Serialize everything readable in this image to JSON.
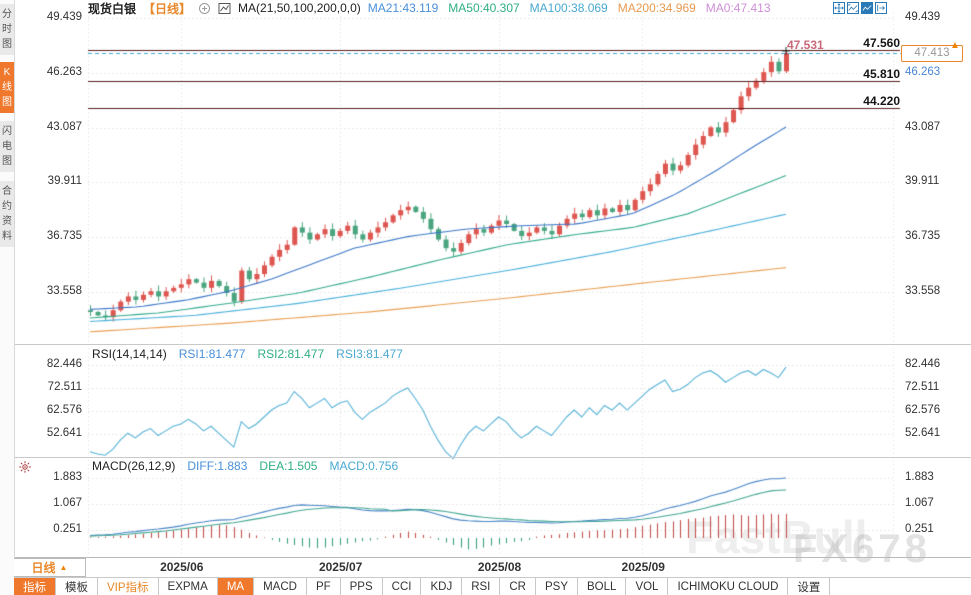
{
  "header": {
    "symbol": "现货白银",
    "period_tag": "【日线】",
    "ma_title": "MA(21,50,100,200,0,0)",
    "ma_values": [
      {
        "text": "MA21:43.119",
        "color": "#4a90d9"
      },
      {
        "text": "MA50:40.307",
        "color": "#2fae84"
      },
      {
        "text": "MA100:38.069",
        "color": "#4aa9d0"
      },
      {
        "text": "MA200:34.969",
        "color": "#e79a52"
      },
      {
        "text": "MA0:47.413",
        "color": "#cf8fd6"
      }
    ],
    "accent_orange": "#f0782d"
  },
  "sidebar": {
    "items": [
      {
        "label": "分时图",
        "active": false
      },
      {
        "label": "K线图",
        "active": true
      },
      {
        "label": "闪电图",
        "active": false
      },
      {
        "label": "合约资料",
        "active": false
      }
    ]
  },
  "rsi": {
    "title": "RSI(14,14,14)",
    "values": [
      {
        "text": "RSI1:81.477",
        "color": "#4a90d9"
      },
      {
        "text": "RSI2:81.477",
        "color": "#2fae84"
      },
      {
        "text": "RSI3:81.477",
        "color": "#4aa9d0"
      }
    ]
  },
  "macd_hdr": {
    "title": "MACD(26,12,9)",
    "values": [
      {
        "text": "DIFF:1.883",
        "color": "#4a90d9"
      },
      {
        "text": "DEA:1.505",
        "color": "#2fae84"
      },
      {
        "text": "MACD:0.756",
        "color": "#4aa9d0"
      }
    ]
  },
  "xaxis": {
    "period_box": "日线"
  },
  "markers": {
    "up_arrow": "▲"
  },
  "toolbar": {
    "tabs": [
      {
        "label": "指标",
        "active": true
      },
      {
        "label": "模板"
      },
      {
        "label": "VIP指标",
        "vip": true
      },
      {
        "label": "EXPMA"
      },
      {
        "label": "MA",
        "active": true
      },
      {
        "label": "MACD"
      },
      {
        "label": "PF"
      },
      {
        "label": "PPS"
      },
      {
        "label": "CCI"
      },
      {
        "label": "KDJ"
      },
      {
        "label": "RSI"
      },
      {
        "label": "CR"
      },
      {
        "label": "PSY"
      },
      {
        "label": "BOLL"
      },
      {
        "label": "VOL"
      },
      {
        "label": "ICHIMOKU CLOUD"
      },
      {
        "label": "设置"
      }
    ]
  },
  "watermarks": {
    "fastbull": "FastBull",
    "fx678": "FX678"
  },
  "chart_data": {
    "type": "candlestick",
    "title": "现货白银 日线",
    "price_ticks": [
      49.439,
      46.263,
      43.087,
      39.911,
      36.735,
      33.558
    ],
    "levels": [
      47.56,
      45.81,
      44.22
    ],
    "current": 47.413,
    "last_high": 47.531,
    "first_open": 32.5,
    "x_month_ticks": [
      {
        "label": "2025/06",
        "i": 12
      },
      {
        "label": "2025/07",
        "i": 33
      },
      {
        "label": "2025/08",
        "i": 54
      },
      {
        "label": "2025/09",
        "i": 73
      }
    ],
    "closes": [
      32.4,
      32.2,
      32.1,
      32.5,
      33.0,
      33.3,
      33.1,
      33.4,
      33.6,
      33.3,
      33.6,
      33.8,
      34.0,
      34.3,
      34.1,
      33.8,
      34.2,
      33.9,
      33.5,
      33.0,
      34.8,
      34.3,
      34.6,
      35.1,
      35.6,
      36.0,
      36.3,
      37.3,
      37.0,
      36.6,
      36.9,
      37.2,
      36.8,
      37.1,
      37.4,
      36.9,
      36.6,
      37.0,
      37.3,
      37.6,
      38.0,
      38.3,
      38.5,
      38.2,
      37.8,
      37.2,
      36.6,
      36.1,
      35.9,
      36.4,
      36.9,
      37.2,
      37.0,
      37.4,
      37.7,
      37.5,
      37.1,
      36.8,
      37.0,
      37.3,
      37.1,
      36.9,
      37.4,
      37.8,
      38.1,
      37.9,
      38.3,
      38.0,
      38.4,
      38.2,
      38.6,
      38.3,
      38.9,
      39.4,
      39.8,
      40.4,
      41.0,
      40.6,
      40.9,
      41.5,
      42.1,
      42.6,
      43.1,
      42.8,
      43.4,
      44.1,
      44.9,
      45.4,
      45.8,
      46.3,
      46.9,
      46.35,
      47.413
    ],
    "up_color": "#de5650",
    "down_color": "#4aa57f",
    "ma_curves": [
      {
        "name": "MA21",
        "color": "#3d78c9",
        "points": [
          [
            0,
            32.55
          ],
          [
            0.07,
            32.7
          ],
          [
            0.14,
            33.1
          ],
          [
            0.2,
            33.6
          ],
          [
            0.26,
            34.3
          ],
          [
            0.32,
            35.2
          ],
          [
            0.38,
            36.1
          ],
          [
            0.46,
            36.8
          ],
          [
            0.54,
            37.2
          ],
          [
            0.62,
            37.4
          ],
          [
            0.7,
            37.5
          ],
          [
            0.78,
            38.1
          ],
          [
            0.84,
            39.2
          ],
          [
            0.9,
            40.6
          ],
          [
            0.95,
            41.9
          ],
          [
            1,
            43.119
          ]
        ]
      },
      {
        "name": "MA50",
        "color": "#36ab8e",
        "points": [
          [
            0,
            32.05
          ],
          [
            0.1,
            32.35
          ],
          [
            0.2,
            32.9
          ],
          [
            0.3,
            33.5
          ],
          [
            0.4,
            34.4
          ],
          [
            0.5,
            35.4
          ],
          [
            0.6,
            36.3
          ],
          [
            0.7,
            36.9
          ],
          [
            0.78,
            37.3
          ],
          [
            0.86,
            38.1
          ],
          [
            0.93,
            39.2
          ],
          [
            1,
            40.307
          ]
        ]
      },
      {
        "name": "MA100",
        "color": "#4bb0dc",
        "points": [
          [
            0,
            31.85
          ],
          [
            0.15,
            32.2
          ],
          [
            0.3,
            32.9
          ],
          [
            0.45,
            33.8
          ],
          [
            0.6,
            34.8
          ],
          [
            0.75,
            35.9
          ],
          [
            0.88,
            37.0
          ],
          [
            1,
            38.069
          ]
        ]
      },
      {
        "name": "MA200",
        "color": "#e9a055",
        "points": [
          [
            0,
            31.25
          ],
          [
            0.2,
            31.75
          ],
          [
            0.4,
            32.4
          ],
          [
            0.6,
            33.2
          ],
          [
            0.8,
            34.1
          ],
          [
            1,
            34.969
          ]
        ]
      }
    ],
    "rsi_panel": {
      "ticks": [
        82.446,
        72.511,
        62.576,
        52.641
      ],
      "line_color": "#57b2d6",
      "values": [
        45,
        44,
        43.5,
        46,
        50,
        53,
        51,
        53.5,
        55,
        52,
        54,
        56,
        57,
        59,
        57,
        54,
        56,
        53,
        50,
        47,
        58,
        55,
        57,
        60,
        63,
        65,
        66,
        71,
        68,
        64,
        66,
        68,
        64,
        66,
        67,
        62,
        59,
        62,
        64,
        66,
        69,
        71,
        72.5,
        68,
        63,
        56,
        50,
        45,
        42,
        48,
        53,
        56,
        54,
        57,
        60,
        58,
        54,
        51,
        53,
        56,
        54,
        52,
        56,
        60,
        63,
        60,
        64,
        61,
        65,
        63,
        66,
        63,
        66,
        69,
        72,
        74,
        76,
        71,
        72,
        74,
        77,
        79,
        80,
        78,
        75,
        77,
        79,
        80,
        78,
        80.5,
        79,
        77,
        81.5
      ]
    },
    "macd_panel": {
      "ticks": [
        1.883,
        1.067,
        0.251
      ],
      "diff_color": "#4a86c8",
      "dea_color": "#43a792",
      "hist_pos_color": "#c4504e",
      "hist_neg_color": "#3ca183",
      "diff": [
        0.08,
        0.09,
        0.1,
        0.12,
        0.15,
        0.18,
        0.2,
        0.23,
        0.26,
        0.28,
        0.31,
        0.34,
        0.38,
        0.43,
        0.47,
        0.5,
        0.54,
        0.56,
        0.57,
        0.58,
        0.65,
        0.7,
        0.76,
        0.82,
        0.88,
        0.93,
        0.97,
        1.02,
        1.04,
        1.03,
        1.02,
        1.01,
        0.99,
        0.97,
        0.96,
        0.92,
        0.88,
        0.86,
        0.85,
        0.85,
        0.86,
        0.88,
        0.9,
        0.89,
        0.86,
        0.81,
        0.74,
        0.67,
        0.6,
        0.56,
        0.54,
        0.53,
        0.52,
        0.52,
        0.53,
        0.53,
        0.52,
        0.5,
        0.49,
        0.49,
        0.48,
        0.47,
        0.48,
        0.5,
        0.52,
        0.53,
        0.55,
        0.56,
        0.58,
        0.59,
        0.61,
        0.62,
        0.65,
        0.7,
        0.76,
        0.83,
        0.91,
        0.97,
        1.02,
        1.08,
        1.15,
        1.23,
        1.32,
        1.38,
        1.44,
        1.52,
        1.61,
        1.7,
        1.77,
        1.82,
        1.86,
        1.86,
        1.883
      ],
      "dea": [
        0.06,
        0.07,
        0.08,
        0.09,
        0.1,
        0.12,
        0.14,
        0.16,
        0.18,
        0.2,
        0.22,
        0.25,
        0.28,
        0.31,
        0.34,
        0.37,
        0.4,
        0.43,
        0.46,
        0.48,
        0.52,
        0.56,
        0.6,
        0.64,
        0.69,
        0.74,
        0.78,
        0.83,
        0.87,
        0.9,
        0.92,
        0.94,
        0.95,
        0.95,
        0.95,
        0.95,
        0.94,
        0.92,
        0.91,
        0.9,
        0.85,
        0.86,
        0.87,
        0.89,
        0.89,
        0.88,
        0.86,
        0.83,
        0.79,
        0.75,
        0.71,
        0.68,
        0.65,
        0.63,
        0.61,
        0.6,
        0.58,
        0.57,
        0.55,
        0.54,
        0.53,
        0.52,
        0.51,
        0.51,
        0.51,
        0.51,
        0.52,
        0.52,
        0.53,
        0.54,
        0.55,
        0.56,
        0.57,
        0.59,
        0.62,
        0.65,
        0.69,
        0.73,
        0.77,
        0.82,
        0.87,
        0.92,
        0.98,
        1.04,
        1.1,
        1.16,
        1.23,
        1.3,
        1.37,
        1.43,
        1.48,
        1.5,
        1.505
      ],
      "hist": [
        0.02,
        0.03,
        0.04,
        0.05,
        0.07,
        0.09,
        0.11,
        0.13,
        0.16,
        0.18,
        0.21,
        0.24,
        0.27,
        0.3,
        0.33,
        0.36,
        0.39,
        0.42,
        0.4,
        0.34,
        0.26,
        0.16,
        0.08,
        0.02,
        -0.06,
        -0.12,
        -0.18,
        -0.22,
        -0.26,
        -0.3,
        -0.32,
        -0.3,
        -0.26,
        -0.22,
        -0.18,
        -0.14,
        -0.1,
        -0.08,
        -0.04,
        0.04,
        0.1,
        0.16,
        0.2,
        0.16,
        0.1,
        0.04,
        -0.06,
        -0.14,
        -0.22,
        -0.3,
        -0.36,
        -0.34,
        -0.3,
        -0.24,
        -0.2,
        -0.16,
        -0.12,
        -0.1,
        -0.06,
        0.04,
        0.08,
        0.1,
        0.12,
        0.16,
        0.18,
        0.2,
        0.22,
        0.24,
        0.24,
        0.26,
        0.28,
        0.3,
        0.34,
        0.38,
        0.42,
        0.46,
        0.5,
        0.52,
        0.56,
        0.6,
        0.62,
        0.64,
        0.68,
        0.7,
        0.72,
        0.74,
        0.72,
        0.7,
        0.72,
        0.74,
        0.76,
        0.74,
        0.756
      ]
    }
  }
}
